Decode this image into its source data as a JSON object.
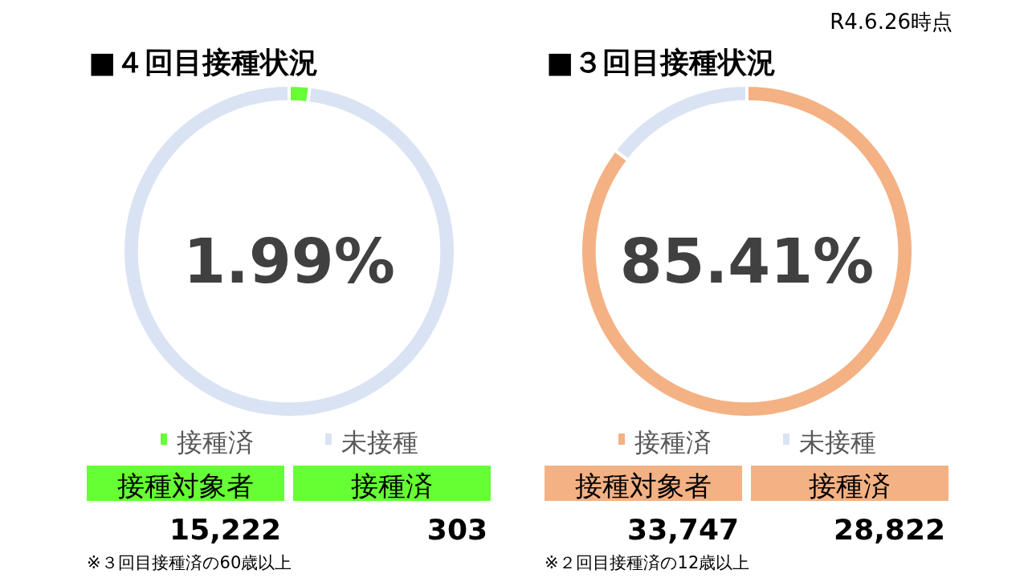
{
  "chart_data": [
    {
      "type": "donut",
      "title": "■４回目接種状況",
      "categories": [
        "接種済",
        "未接種"
      ],
      "values": [
        1.99,
        98.01
      ],
      "colors": [
        "#66ff33",
        "#dae3f3"
      ],
      "legend": "bottom",
      "annotations": [
        "1.99%",
        "接種対象者",
        "15,222",
        "接種済",
        "303",
        "※３回目接種済の60歳以上"
      ]
    },
    {
      "type": "donut",
      "title": "■３回目接種状況",
      "categories": [
        "接種済",
        "未接種"
      ],
      "values": [
        85.41,
        14.59
      ],
      "colors": [
        "#f4b183",
        "#dae3f3"
      ],
      "legend": "bottom",
      "annotations": [
        "85.41%",
        "接種対象者",
        "33,747",
        "接種済",
        "28,822",
        "※２回目接種済の12歳以上",
        "R4.6.26時点"
      ]
    }
  ]
}
